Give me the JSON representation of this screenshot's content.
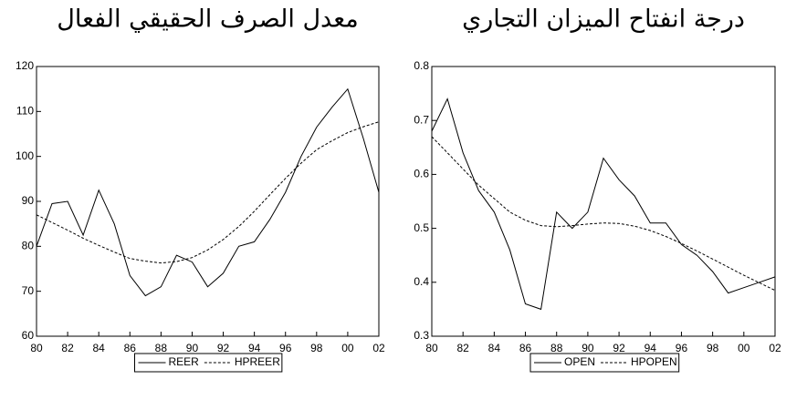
{
  "chart_data": [
    {
      "type": "line",
      "title": "معدل الصرف الحقيقي الفعال",
      "x": [
        1980,
        1981,
        1982,
        1983,
        1984,
        1985,
        1986,
        1987,
        1988,
        1989,
        1990,
        1991,
        1992,
        1993,
        1994,
        1995,
        1996,
        1997,
        1998,
        1999,
        2000,
        2001,
        2002
      ],
      "xlim": [
        1980,
        2002
      ],
      "xticks": [
        {
          "value": 1980,
          "label": "80"
        },
        {
          "value": 1982,
          "label": "82"
        },
        {
          "value": 1984,
          "label": "84"
        },
        {
          "value": 1986,
          "label": "86"
        },
        {
          "value": 1988,
          "label": "88"
        },
        {
          "value": 1990,
          "label": "90"
        },
        {
          "value": 1992,
          "label": "92"
        },
        {
          "value": 1994,
          "label": "94"
        },
        {
          "value": 1996,
          "label": "96"
        },
        {
          "value": 1998,
          "label": "98"
        },
        {
          "value": 2000,
          "label": "00"
        },
        {
          "value": 2002,
          "label": "02"
        }
      ],
      "ylim": [
        60,
        120
      ],
      "yticks": [
        60,
        70,
        80,
        90,
        100,
        110,
        120
      ],
      "series": [
        {
          "name": "REER",
          "color": "#000000",
          "dash": false,
          "values": [
            80,
            89.5,
            90,
            82.5,
            92.5,
            85,
            73.5,
            69,
            71,
            78,
            76.5,
            71,
            74,
            80,
            81,
            86,
            92,
            100,
            106.5,
            111,
            115,
            104,
            92
          ]
        },
        {
          "name": "HPREER",
          "color": "#000000",
          "dash": true,
          "values": [
            87,
            85.3,
            83.6,
            81.8,
            80.2,
            78.7,
            77.3,
            76.7,
            76.3,
            76.6,
            77.5,
            79.2,
            81.5,
            84.4,
            87.8,
            91.5,
            95.1,
            98.5,
            101.5,
            103.5,
            105.3,
            106.6,
            107.7
          ]
        }
      ]
    },
    {
      "type": "line",
      "title": "درجة انفتاح الميزان التجاري",
      "x": [
        1980,
        1981,
        1982,
        1983,
        1984,
        1985,
        1986,
        1987,
        1988,
        1989,
        1990,
        1991,
        1992,
        1993,
        1994,
        1995,
        1996,
        1997,
        1998,
        1999,
        2000,
        2001,
        2002
      ],
      "xlim": [
        1980,
        2002
      ],
      "xticks": [
        {
          "value": 1980,
          "label": "80"
        },
        {
          "value": 1982,
          "label": "82"
        },
        {
          "value": 1984,
          "label": "84"
        },
        {
          "value": 1986,
          "label": "86"
        },
        {
          "value": 1988,
          "label": "88"
        },
        {
          "value": 1990,
          "label": "90"
        },
        {
          "value": 1992,
          "label": "92"
        },
        {
          "value": 1994,
          "label": "94"
        },
        {
          "value": 1996,
          "label": "96"
        },
        {
          "value": 1998,
          "label": "98"
        },
        {
          "value": 2000,
          "label": "00"
        },
        {
          "value": 2002,
          "label": "02"
        }
      ],
      "ylim": [
        0.3,
        0.8
      ],
      "yticks": [
        0.3,
        0.4,
        0.5,
        0.6,
        0.7,
        0.8
      ],
      "series": [
        {
          "name": "OPEN",
          "color": "#000000",
          "dash": false,
          "values": [
            0.68,
            0.74,
            0.64,
            0.57,
            0.53,
            0.46,
            0.36,
            0.35,
            0.53,
            0.5,
            0.53,
            0.63,
            0.59,
            0.56,
            0.51,
            0.51,
            0.47,
            0.45,
            0.42,
            0.38,
            0.39,
            0.4,
            0.41
          ]
        },
        {
          "name": "HPOPEN",
          "color": "#000000",
          "dash": true,
          "values": [
            0.67,
            0.64,
            0.61,
            0.58,
            0.555,
            0.53,
            0.515,
            0.505,
            0.503,
            0.505,
            0.508,
            0.51,
            0.509,
            0.504,
            0.496,
            0.485,
            0.472,
            0.458,
            0.443,
            0.428,
            0.413,
            0.399,
            0.385
          ]
        }
      ]
    }
  ]
}
